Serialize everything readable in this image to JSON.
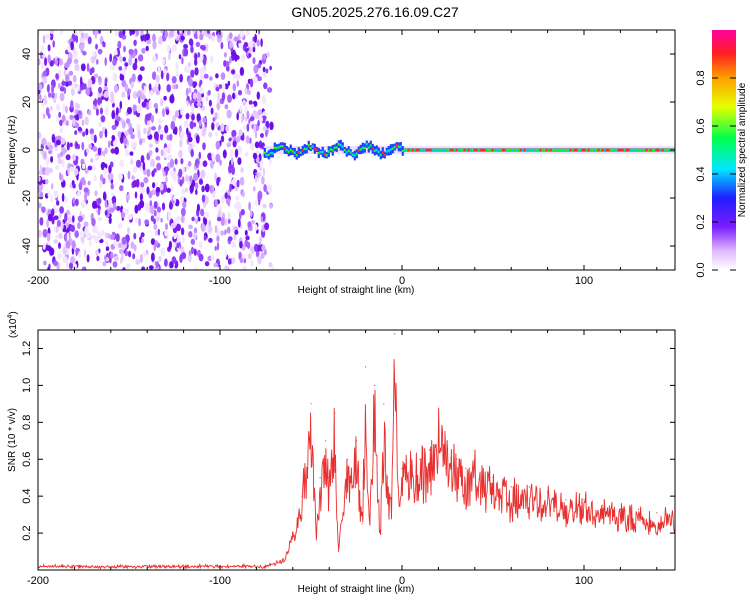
{
  "page_title": "GN05.2025.276.16.09.C27",
  "chart_data": [
    {
      "type": "heatmap",
      "title": "GN05.2025.276.16.09.C27",
      "xlabel": "Height of straight line (km)",
      "ylabel": "Frequency (Hz)",
      "xlim": [
        -200,
        150
      ],
      "ylim": [
        -50,
        50
      ],
      "xticks": [
        -200,
        -100,
        0,
        100
      ],
      "yticks": [
        -40,
        -20,
        0,
        20,
        40
      ],
      "colorbar": {
        "label": "Normalized spectral amplitude",
        "range": [
          0,
          1
        ],
        "ticks": [
          "0.0",
          "0.2",
          "0.4",
          "0.6",
          "0.8"
        ],
        "tick_values": [
          0,
          0.2,
          0.4,
          0.6,
          0.8
        ],
        "colormap": "rainbow"
      },
      "noise_region_x": [
        -200,
        -75
      ],
      "signal_band_hz": 0
    },
    {
      "type": "line",
      "xlabel": "Height of straight line (km)",
      "ylabel": "SNR (10 * v/v)",
      "y_scale_label": "(x10",
      "y_scale_exp": "4",
      "y_scale_close": ")",
      "xlim": [
        -200,
        150
      ],
      "ylim": [
        0,
        1.3
      ],
      "xticks": [
        -200,
        -100,
        0,
        100
      ],
      "yticks": [
        "0.2",
        "0.4",
        "0.6",
        "0.8",
        "1.0",
        "1.2"
      ],
      "ytick_values": [
        0.2,
        0.4,
        0.6,
        0.8,
        1.0,
        1.2
      ],
      "color": "#e8302f",
      "x": [
        -200,
        -150,
        -100,
        -75,
        -65,
        -60,
        -55,
        -50,
        -47,
        -45,
        -42,
        -40,
        -37,
        -35,
        -30,
        -25,
        -22,
        -20,
        -18,
        -15,
        -12,
        -10,
        -8,
        -6,
        -4,
        -2,
        0,
        5,
        10,
        15,
        20,
        25,
        30,
        35,
        40,
        50,
        60,
        70,
        80,
        90,
        100,
        110,
        120,
        130,
        140,
        150
      ],
      "values": [
        0.02,
        0.02,
        0.02,
        0.02,
        0.06,
        0.2,
        0.4,
        0.9,
        0.2,
        0.5,
        0.7,
        0.5,
        0.85,
        0.1,
        0.6,
        0.7,
        0.25,
        1.1,
        0.3,
        1.0,
        0.2,
        0.9,
        0.5,
        0.35,
        1.28,
        0.45,
        0.55,
        0.6,
        0.6,
        0.65,
        0.8,
        0.7,
        0.6,
        0.55,
        0.6,
        0.5,
        0.45,
        0.45,
        0.42,
        0.38,
        0.38,
        0.35,
        0.33,
        0.33,
        0.31,
        0.32
      ]
    }
  ]
}
